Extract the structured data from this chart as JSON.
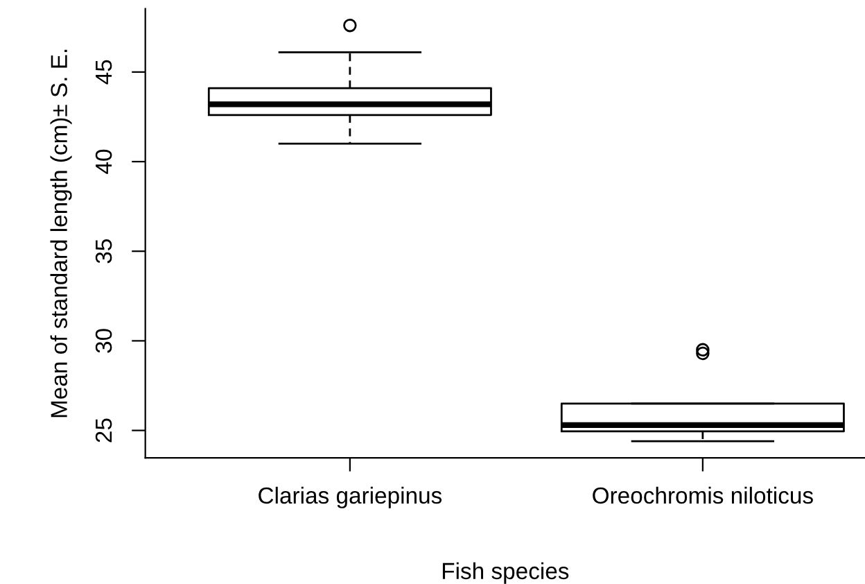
{
  "chart_data": {
    "type": "box",
    "xlabel": "Fish species",
    "ylabel": "Mean of standard length (cm)± S. E.",
    "categories": [
      "Clarias gariepinus",
      "Oreochromis niloticus"
    ],
    "boxes": [
      {
        "low": 41.0,
        "q1": 42.6,
        "median": 43.2,
        "q3": 44.1,
        "high": 46.1,
        "outliers": [
          47.6
        ]
      },
      {
        "low": 24.4,
        "q1": 24.95,
        "median": 25.3,
        "q3": 26.5,
        "high": 26.5,
        "outliers": [
          29.3,
          29.5
        ]
      }
    ],
    "ylim": [
      23.47,
      48.53
    ],
    "yticks": [
      25,
      30,
      35,
      40,
      45
    ],
    "grid": false
  }
}
